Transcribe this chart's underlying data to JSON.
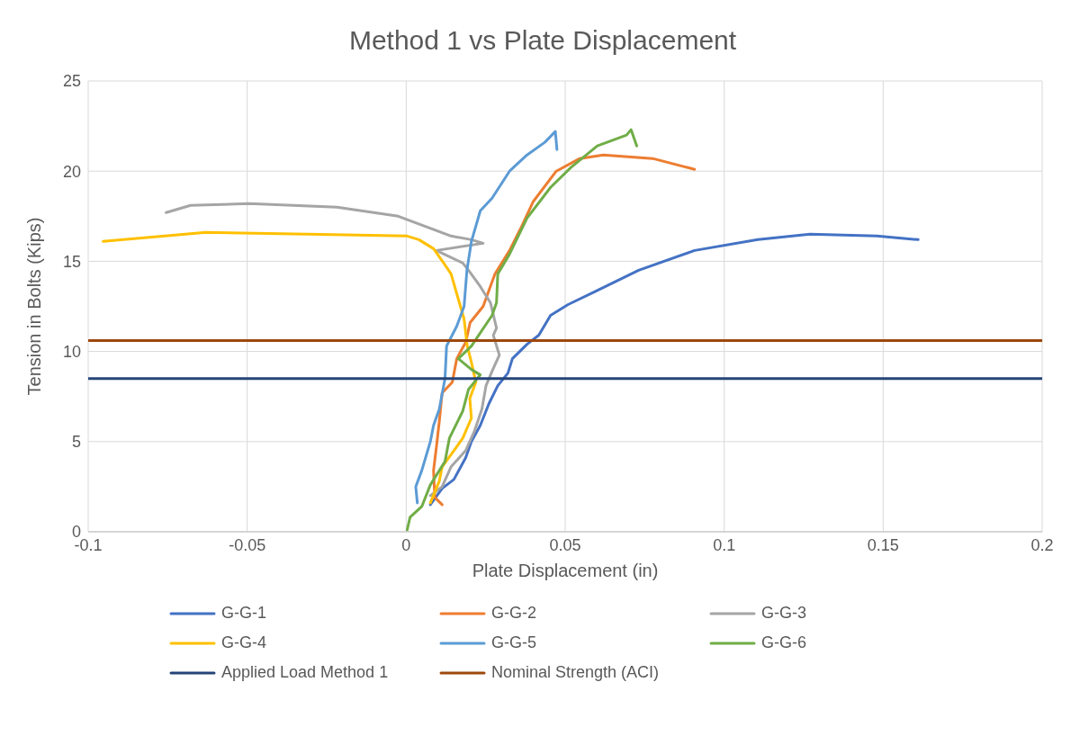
{
  "chart_data": {
    "type": "line",
    "title": "Method 1 vs Plate Displacement",
    "xlabel": "Plate Displacement (in)",
    "ylabel": "Tension in Bolts (Kips)",
    "xlim": [
      -0.1,
      0.2
    ],
    "xticks": [
      -0.1,
      -0.05,
      0,
      0.05,
      0.1,
      0.15,
      0.2
    ],
    "ylim": [
      0,
      25
    ],
    "yticks": [
      0,
      5,
      10,
      15,
      20,
      25
    ],
    "grid": true,
    "legend": "bottom",
    "marker": "none",
    "line_style": "solid",
    "series": [
      {
        "name": "G-G-1",
        "color": "#4472c4",
        "x": [
          0.0076,
          0.0113,
          0.015,
          0.0187,
          0.0205,
          0.0233,
          0.026,
          0.0288,
          0.032,
          0.0334,
          0.038,
          0.0417,
          0.0454,
          0.0509,
          0.0592,
          0.0731,
          0.0907,
          0.1106,
          0.127,
          0.148,
          0.161
        ],
        "values": [
          1.5,
          2.4,
          2.9,
          4.1,
          5.0,
          5.9,
          7.1,
          8.1,
          8.8,
          9.6,
          10.4,
          10.9,
          12.0,
          12.6,
          13.3,
          14.5,
          15.6,
          16.2,
          16.5,
          16.4,
          16.2
        ]
      },
      {
        "name": "G-G-2",
        "color": "#ed7d31",
        "x": [
          0.0113,
          0.009,
          0.0086,
          0.0095,
          0.0104,
          0.0113,
          0.0145,
          0.0159,
          0.0187,
          0.0201,
          0.0242,
          0.0279,
          0.0325,
          0.0362,
          0.0399,
          0.0472,
          0.0546,
          0.062,
          0.0775,
          0.0907
        ],
        "values": [
          1.5,
          1.9,
          3.4,
          4.7,
          6.1,
          7.7,
          8.3,
          9.6,
          10.5,
          11.6,
          12.5,
          14.3,
          15.6,
          16.9,
          18.3,
          20.0,
          20.7,
          20.9,
          20.7,
          20.1
        ]
      },
      {
        "name": "G-G-3",
        "color": "#a5a5a5",
        "x": [
          0.0076,
          0.0113,
          0.0141,
          0.0187,
          0.0215,
          0.0238,
          0.0251,
          0.027,
          0.0293,
          0.0274,
          0.0284,
          0.0265,
          0.0233,
          0.0196,
          0.0178,
          0.0095,
          0.0242,
          0.0205,
          0.0141,
          -0.0025,
          -0.0218,
          -0.0494,
          -0.0678,
          -0.0755
        ],
        "values": [
          2.0,
          2.5,
          3.6,
          4.5,
          5.6,
          6.8,
          8.1,
          8.9,
          9.8,
          10.9,
          11.3,
          12.7,
          13.6,
          14.5,
          14.9,
          15.6,
          16.0,
          16.2,
          16.4,
          17.5,
          18.0,
          18.2,
          18.1,
          17.7
        ]
      },
      {
        "name": "G-G-4",
        "color": "#ffc000",
        "x": [
          0.0076,
          0.0104,
          0.0113,
          0.015,
          0.0178,
          0.0205,
          0.02,
          0.0219,
          0.0205,
          0.0192,
          0.0182,
          0.0164,
          0.0141,
          0.0118,
          0.0086,
          0.004,
          0.0003,
          -0.031,
          -0.063,
          -0.0953
        ],
        "values": [
          1.6,
          2.8,
          3.6,
          4.5,
          5.2,
          6.3,
          7.4,
          8.3,
          9.4,
          10.3,
          11.8,
          12.9,
          14.3,
          14.9,
          15.7,
          16.2,
          16.4,
          16.5,
          16.6,
          16.1
        ]
      },
      {
        "name": "G-G-5",
        "color": "#5b9bd5",
        "x": [
          0.0035,
          0.003,
          0.0049,
          0.0076,
          0.0086,
          0.0104,
          0.0122,
          0.0127,
          0.0159,
          0.0182,
          0.0191,
          0.0205,
          0.0233,
          0.027,
          0.0325,
          0.038,
          0.0436,
          0.0469,
          0.0474
        ],
        "values": [
          1.6,
          2.5,
          3.4,
          5.0,
          5.9,
          6.8,
          8.5,
          10.3,
          11.4,
          12.5,
          14.5,
          16.1,
          17.8,
          18.5,
          20.0,
          20.9,
          21.6,
          22.2,
          21.2
        ]
      },
      {
        "name": "G-G-6",
        "color": "#70ad47",
        "x": [
          0.0003,
          0.0012,
          0.0049,
          0.0076,
          0.0122,
          0.0136,
          0.0178,
          0.0196,
          0.0233,
          0.0205,
          0.0164,
          0.0205,
          0.027,
          0.0284,
          0.0288,
          0.0325,
          0.038,
          0.0454,
          0.0518,
          0.0601,
          0.0693,
          0.0707,
          0.0725
        ],
        "values": [
          0.1,
          0.8,
          1.4,
          2.6,
          3.9,
          5.2,
          6.7,
          7.9,
          8.7,
          9.0,
          9.6,
          10.3,
          12.0,
          12.7,
          14.3,
          15.4,
          17.4,
          19.1,
          20.2,
          21.4,
          22.0,
          22.3,
          21.4
        ]
      },
      {
        "name": "Applied Load Method 1",
        "color": "#264478",
        "x": [
          -0.1,
          0.2
        ],
        "values": [
          8.5,
          8.5
        ]
      },
      {
        "name": "Nominal Strength (ACI)",
        "color": "#9e480e",
        "x": [
          -0.1,
          0.2
        ],
        "values": [
          10.6,
          10.6
        ]
      }
    ]
  }
}
